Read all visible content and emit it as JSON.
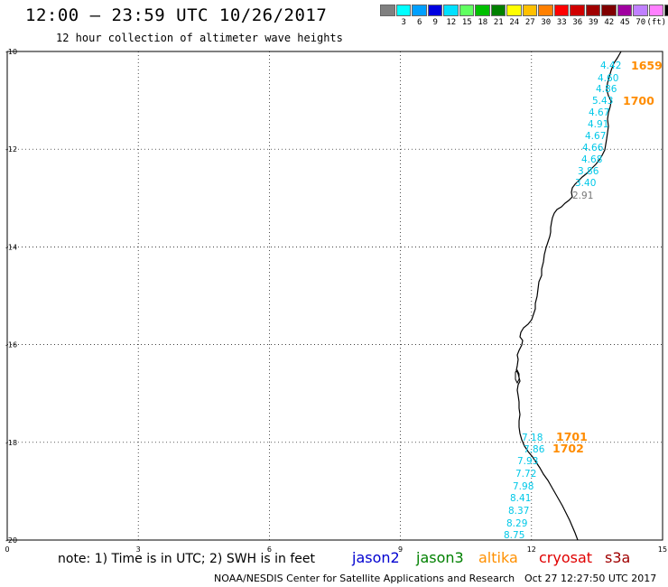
{
  "header": {
    "title": "12:00 – 23:59 UTC 10/26/2017",
    "subtitle": "12 hour collection of altimeter wave heights"
  },
  "legend": {
    "colors": [
      "#808080",
      "#00ffff",
      "#00a0ff",
      "#0000e0",
      "#00e0ff",
      "#60ff60",
      "#00c000",
      "#008000",
      "#ffff00",
      "#ffc000",
      "#ff8000",
      "#ff0000",
      "#d00000",
      "#a00000",
      "#800000",
      "#a000a0",
      "#c080ff",
      "#ff80ff",
      "#000000"
    ],
    "labels": [
      "3",
      "6",
      "9",
      "12",
      "15",
      "18",
      "21",
      "24",
      "27",
      "30",
      "33",
      "36",
      "39",
      "42",
      "45",
      "70",
      "(ft)"
    ]
  },
  "map": {
    "lon_ticks": [
      "0",
      "3",
      "6",
      "9",
      "12",
      "15"
    ],
    "lat_ticks": [
      "-10",
      "-12",
      "-14",
      "-16",
      "-18",
      "-20"
    ],
    "lon_range": [
      0,
      15
    ],
    "lat_range": [
      -20,
      -10
    ],
    "grid": true,
    "coastline_color": "#000000",
    "track_times": [
      {
        "label": "1659",
        "color": "#ff8c00"
      },
      {
        "label": "1700",
        "color": "#ff8c00"
      },
      {
        "label": "1701",
        "color": "#ff8c00"
      },
      {
        "label": "1702",
        "color": "#ff8c00"
      }
    ],
    "wave_heights": [
      {
        "value": "4.42",
        "color": "#00c8e8"
      },
      {
        "value": "4.60",
        "color": "#00c8e8"
      },
      {
        "value": "4.86",
        "color": "#00c8e8"
      },
      {
        "value": "5.43",
        "color": "#00c8e8"
      },
      {
        "value": "4.67",
        "color": "#00c8e8"
      },
      {
        "value": "4.91",
        "color": "#00c8e8"
      },
      {
        "value": "4.67",
        "color": "#00c8e8"
      },
      {
        "value": "4.66",
        "color": "#00c8e8"
      },
      {
        "value": "4.68",
        "color": "#00c8e8"
      },
      {
        "value": "3.86",
        "color": "#00c8e8"
      },
      {
        "value": "3.40",
        "color": "#00c8e8"
      },
      {
        "value": "2.91",
        "color": "#777777"
      },
      {
        "value": "7.18",
        "color": "#00c8e8"
      },
      {
        "value": "7.86",
        "color": "#00c8e8"
      },
      {
        "value": "7.93",
        "color": "#00c8e8"
      },
      {
        "value": "7.72",
        "color": "#00c8e8"
      },
      {
        "value": "7.98",
        "color": "#00c8e8"
      },
      {
        "value": "8.41",
        "color": "#00c8e8"
      },
      {
        "value": "8.37",
        "color": "#00c8e8"
      },
      {
        "value": "8.29",
        "color": "#00c8e8"
      },
      {
        "value": "8.75",
        "color": "#00c8e8"
      }
    ]
  },
  "footer": {
    "note": "note: 1) Time is in UTC; 2) SWH is in feet",
    "satellites": [
      {
        "name": "jason2",
        "color": "#0000d0"
      },
      {
        "name": "jason3",
        "color": "#008000"
      },
      {
        "name": "altika",
        "color": "#ff9000"
      },
      {
        "name": "cryosat",
        "color": "#e00000"
      },
      {
        "name": "s3a",
        "color": "#a00000"
      }
    ],
    "credit": "NOAA/NESDIS Center for Satellite Applications and Research",
    "timestamp": "Oct 27 12:27:50 UTC 2017"
  }
}
